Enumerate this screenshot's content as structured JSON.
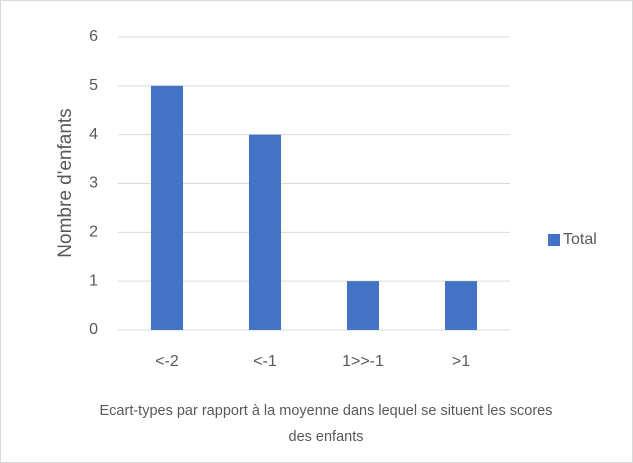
{
  "chart_data": {
    "type": "bar",
    "categories": [
      "<-2",
      "<-1",
      "1>>-1",
      ">1"
    ],
    "series": [
      {
        "name": "Total",
        "color": "#4472c4",
        "values": [
          5,
          4,
          1,
          1
        ]
      }
    ],
    "ylim": [
      0,
      6
    ],
    "yticks": [
      0,
      1,
      2,
      3,
      4,
      5,
      6
    ],
    "grid": true,
    "legend": "right",
    "y_label": "Nombre d'enfants",
    "x_label": "Ecart-types par rapport à la moyenne dans lequel se situent les scores des enfants"
  }
}
